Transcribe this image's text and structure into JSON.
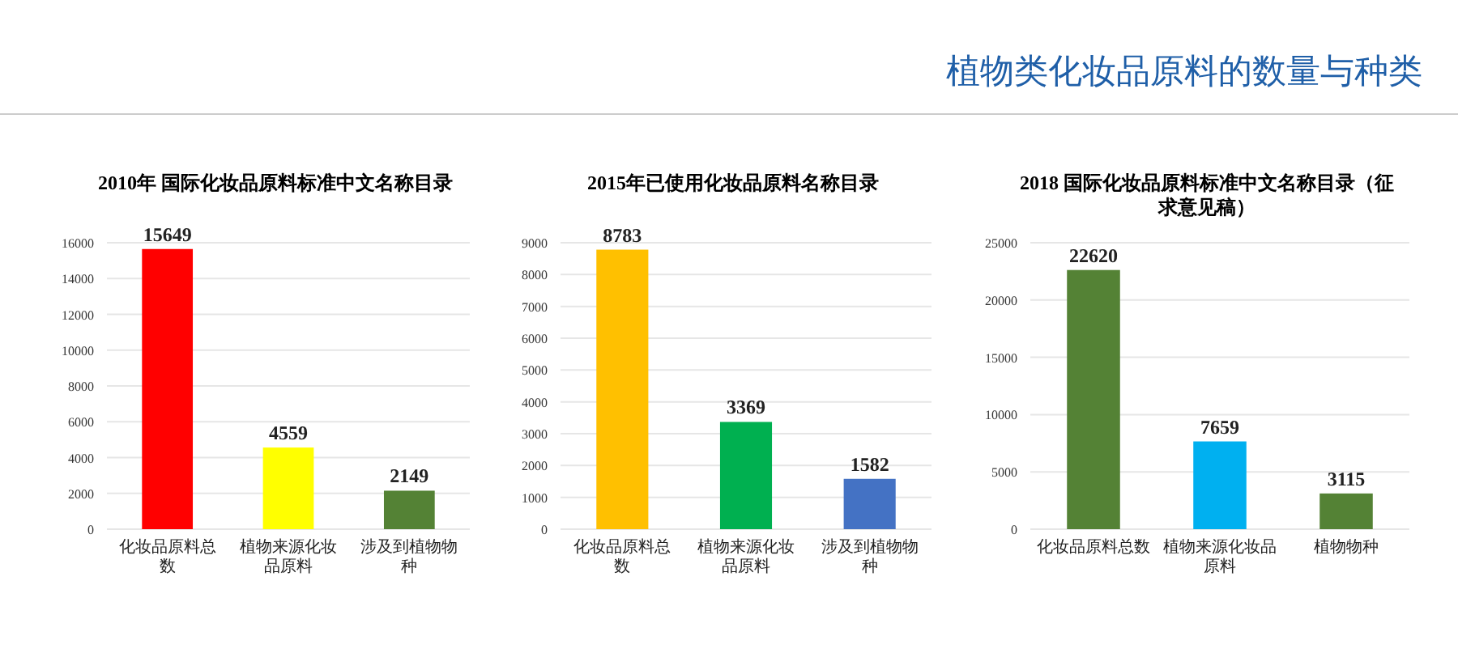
{
  "chart_data": [
    {
      "type": "other",
      "title": "植物类化妆品原料的数量与种类"
    },
    {
      "type": "bar",
      "title": "2010年 国际化妆品原料标准中文名称目录",
      "categories": [
        "化妆品原料总数",
        "植物来源化妆品原料",
        "涉及到植物物种"
      ],
      "values": [
        15649,
        4559,
        2149
      ],
      "colors": [
        "#ff0000",
        "#ffff00",
        "#548235"
      ],
      "ylim": [
        0,
        16000
      ],
      "yticks": [
        0,
        2000,
        4000,
        6000,
        8000,
        10000,
        12000,
        14000,
        16000
      ],
      "grid": "y",
      "data_labels": true
    },
    {
      "type": "bar",
      "title": "2015年已使用化妆品原料名称目录",
      "categories": [
        "化妆品原料总数",
        "植物来源化妆品原料",
        "涉及到植物物种"
      ],
      "values": [
        8783,
        3369,
        1582
      ],
      "colors": [
        "#ffc000",
        "#00b050",
        "#4472c4"
      ],
      "ylim": [
        0,
        9000
      ],
      "yticks": [
        0,
        1000,
        2000,
        3000,
        4000,
        5000,
        6000,
        7000,
        8000,
        9000
      ],
      "grid": "y",
      "data_labels": true
    },
    {
      "type": "bar",
      "title": "2018 国际化妆品原料标准中文名称目录（征求意见稿）",
      "categories": [
        "化妆品原料总数",
        "植物来源化妆品原料",
        "植物物种"
      ],
      "values": [
        22620,
        7659,
        3115
      ],
      "colors": [
        "#548235",
        "#00b0f0",
        "#548235"
      ],
      "ylim": [
        0,
        25000
      ],
      "yticks": [
        0,
        5000,
        10000,
        15000,
        20000,
        25000
      ],
      "grid": "y",
      "data_labels": true
    }
  ]
}
